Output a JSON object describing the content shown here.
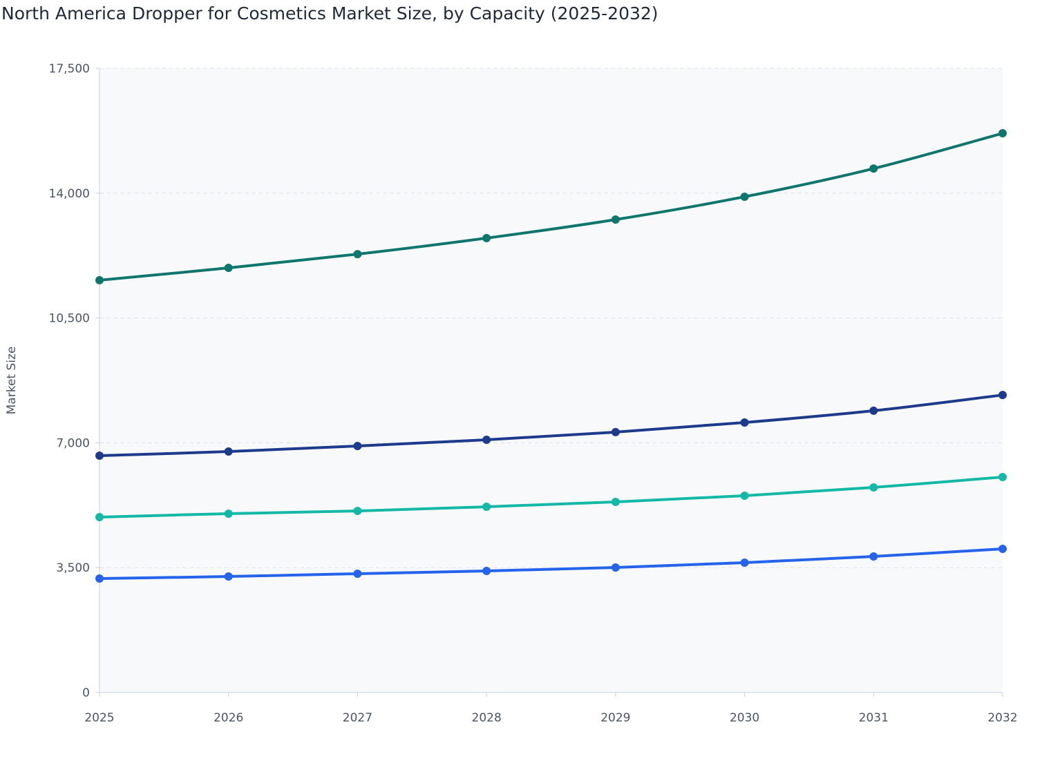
{
  "chart_data": {
    "type": "line",
    "title": "North America Dropper for Cosmetics Market Size, by Capacity (2025-2032)",
    "y_label": "Market Size",
    "x": [
      2025,
      2026,
      2027,
      2028,
      2029,
      2030,
      2031,
      2032
    ],
    "xlim": [
      2025,
      2032
    ],
    "xticks": [
      2025,
      2026,
      2027,
      2028,
      2029,
      2030,
      2031,
      2032
    ],
    "ylim": [
      0,
      17500
    ],
    "yticks": [
      0,
      {
        "value": 3500,
        "label": "3,500"
      },
      {
        "value": 7000,
        "label": "7,000"
      },
      {
        "value": 10500,
        "label": "10,500"
      },
      {
        "value": 14000,
        "label": "14,000"
      },
      {
        "value": 17500,
        "label": "17,500"
      }
    ],
    "grid": true,
    "series": [
      {
        "color": "#0f766e",
        "values": [
          11560,
          11905,
          12290,
          12740,
          13260,
          13900,
          14690,
          15680
        ]
      },
      {
        "color": "#1e3a8a",
        "values": [
          6640,
          6756,
          6910,
          7085,
          7300,
          7570,
          7900,
          8340
        ]
      },
      {
        "color": "#14b8a6",
        "values": [
          4917,
          5014,
          5090,
          5207,
          5343,
          5517,
          5750,
          6040
        ]
      },
      {
        "color": "#2563eb",
        "values": [
          3194,
          3252,
          3330,
          3407,
          3504,
          3640,
          3814,
          4027
        ]
      }
    ]
  }
}
